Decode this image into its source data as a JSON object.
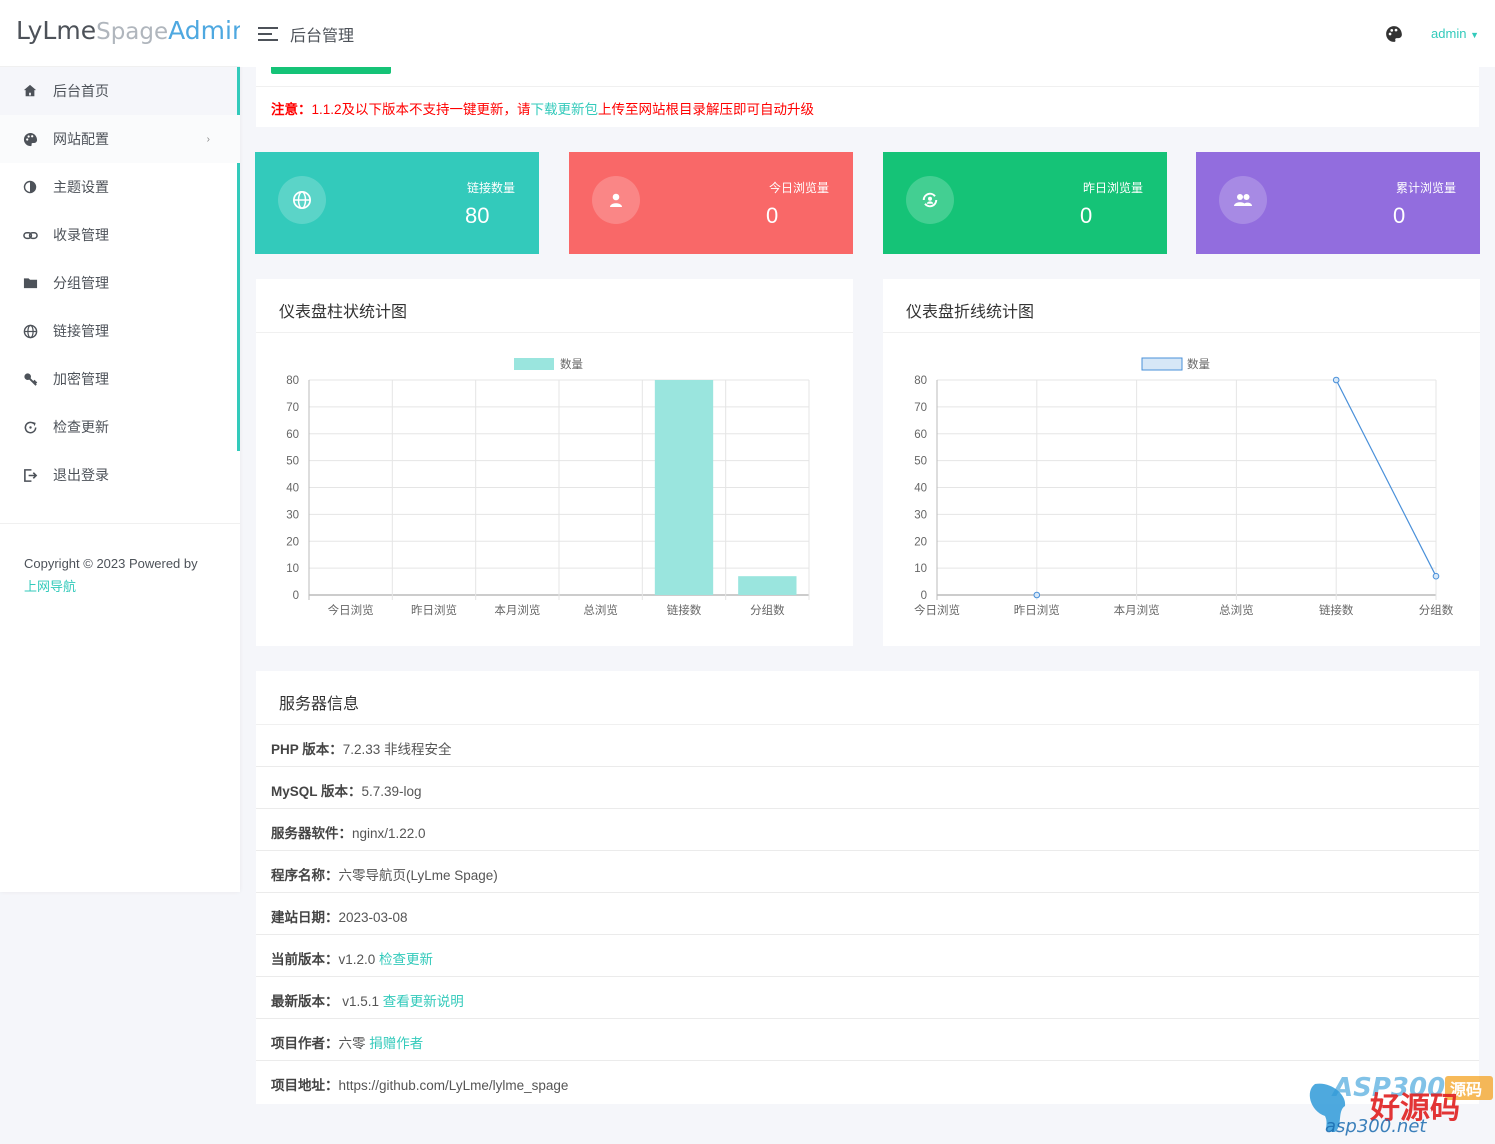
{
  "brand": {
    "part1": "LyLme",
    "part2": "Spage",
    "part3": "Admin"
  },
  "header": {
    "title": "后台管理",
    "user": "admin"
  },
  "sidebar": {
    "items": [
      {
        "label": "后台首页",
        "icon": "home-icon"
      },
      {
        "label": "网站配置",
        "icon": "palette-icon"
      },
      {
        "label": "主题设置",
        "icon": "theme-icon"
      },
      {
        "label": "收录管理",
        "icon": "link-icon"
      },
      {
        "label": "分组管理",
        "icon": "folder-icon"
      },
      {
        "label": "链接管理",
        "icon": "globe-icon"
      },
      {
        "label": "加密管理",
        "icon": "key-icon"
      },
      {
        "label": "检查更新",
        "icon": "refresh-icon"
      },
      {
        "label": "退出登录",
        "icon": "logout-icon"
      }
    ],
    "footer_text": "Copyright © 2023 Powered by",
    "footer_link": "上网导航"
  },
  "notice": {
    "prefix": "注意：",
    "text1": "1.1.2及以下版本不支持一键更新，请",
    "link": "下载更新包",
    "text2": "上传至网站根目录解压即可自动升级"
  },
  "stats": [
    {
      "label": "链接数量",
      "value": "80",
      "color": "#33cabb",
      "icon": "globe-icon"
    },
    {
      "label": "今日浏览量",
      "value": "0",
      "color": "#f96868",
      "icon": "user-icon"
    },
    {
      "label": "昨日浏览量",
      "value": "0",
      "color": "#15c377",
      "icon": "sync-icon"
    },
    {
      "label": "累计浏览量",
      "value": "0",
      "color": "#926dde",
      "icon": "users-icon"
    }
  ],
  "chart_data": [
    {
      "type": "bar",
      "title": "仪表盘柱状统计图",
      "categories": [
        "今日浏览",
        "昨日浏览",
        "本月浏览",
        "总浏览",
        "链接数",
        "分组数"
      ],
      "series": [
        {
          "name": "数量",
          "values": [
            0,
            0,
            0,
            0,
            80,
            7
          ]
        }
      ],
      "ylim": [
        0,
        80
      ],
      "yticks": [
        0,
        10,
        20,
        30,
        40,
        50,
        60,
        70,
        80
      ],
      "legend": "top-center",
      "grid": true,
      "color": "#9ae5de"
    },
    {
      "type": "line",
      "title": "仪表盘折线统计图",
      "categories": [
        "今日浏览",
        "昨日浏览",
        "本月浏览",
        "总浏览",
        "链接数",
        "分组数"
      ],
      "series": [
        {
          "name": "数量",
          "values": [
            null,
            0,
            null,
            null,
            80,
            7
          ]
        }
      ],
      "ylim": [
        0,
        80
      ],
      "yticks": [
        0,
        10,
        20,
        30,
        40,
        50,
        60,
        70,
        80
      ],
      "legend": "top-center",
      "grid": true,
      "color": "#4a90d9"
    }
  ],
  "server": {
    "title": "服务器信息",
    "rows": [
      {
        "label": "PHP 版本：",
        "value": "7.2.33 非线程安全",
        "link": ""
      },
      {
        "label": "MySQL 版本：",
        "value": "5.7.39-log",
        "link": ""
      },
      {
        "label": "服务器软件：",
        "value": "nginx/1.22.0",
        "link": ""
      },
      {
        "label": "程序名称：",
        "value": "六零导航页(LyLme Spage)",
        "link": ""
      },
      {
        "label": "建站日期：",
        "value": "2023-03-08",
        "link": ""
      },
      {
        "label": "当前版本：",
        "value": "v1.2.0",
        "link": "检查更新"
      },
      {
        "label": "最新版本：",
        "value": " v1.5.1",
        "link": "查看更新说明"
      },
      {
        "label": "项目作者：",
        "value": "六零",
        "link": "捐赠作者"
      },
      {
        "label": "项目地址：",
        "value": "https://github.com/LyLme/lylme_spage",
        "link": ""
      }
    ]
  },
  "watermark": {
    "text1": "ASP300",
    "text2": "好源码",
    "text3": "asp300.net",
    "text4": "源码"
  }
}
